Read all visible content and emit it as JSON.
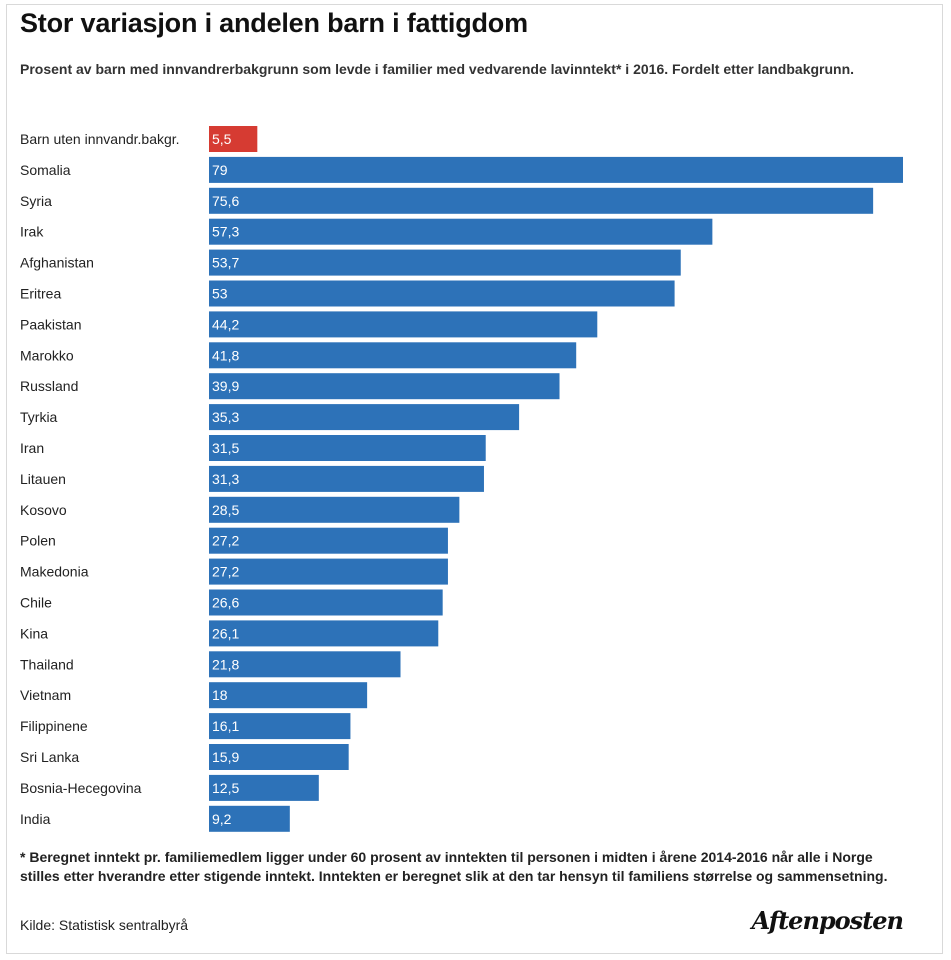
{
  "title": "Stor variasjon i andelen barn i fattigdom",
  "subtitle": "Prosent av barn med innvandrerbakgrunn som levde i familier med vedvarende lavinntekt* i 2016. Fordelt etter landbakgrunn.",
  "footnote": "* Beregnet inntekt pr. familiemedlem ligger under 60 prosent av inntekten til personen i midten i årene 2014-2016 når alle i Norge stilles etter hverandre etter stigende inntekt. Inntekten er beregnet slik at den tar hensyn til familiens størrelse og sammensetning.",
  "source": "Kilde: Statistisk sentralbyrå",
  "logo": "Aftenposten",
  "colors": {
    "highlight": "#d63b32",
    "bar": "#2d72b8"
  },
  "chart_data": {
    "type": "bar",
    "orientation": "horizontal",
    "categories": [
      "Barn uten innvandr.bakgr.",
      "Somalia",
      "Syria",
      "Irak",
      "Afghanistan",
      "Eritrea",
      "Paakistan",
      "Marokko",
      "Russland",
      "Tyrkia",
      "Iran",
      "Litauen",
      "Kosovo",
      "Polen",
      "Makedonia",
      "Chile",
      "Kina",
      "Thailand",
      "Vietnam",
      "Filippinene",
      "Sri Lanka",
      "Bosnia-Hecegovina",
      "India"
    ],
    "values": [
      5.5,
      79,
      75.6,
      57.3,
      53.7,
      53,
      44.2,
      41.8,
      39.9,
      35.3,
      31.5,
      31.3,
      28.5,
      27.2,
      27.2,
      26.6,
      26.1,
      21.8,
      18,
      16.1,
      15.9,
      12.5,
      9.2
    ],
    "value_labels": [
      "5,5",
      "79",
      "75,6",
      "57,3",
      "53,7",
      "53",
      "44,2",
      "41,8",
      "39,9",
      "35,3",
      "31,5",
      "31,3",
      "28,5",
      "27,2",
      "27,2",
      "26,6",
      "26,1",
      "21,8",
      "18",
      "16,1",
      "15,9",
      "12,5",
      "9,2"
    ],
    "highlight_index": 0,
    "xlim": [
      0,
      79
    ],
    "grid": false,
    "legend": "none"
  }
}
